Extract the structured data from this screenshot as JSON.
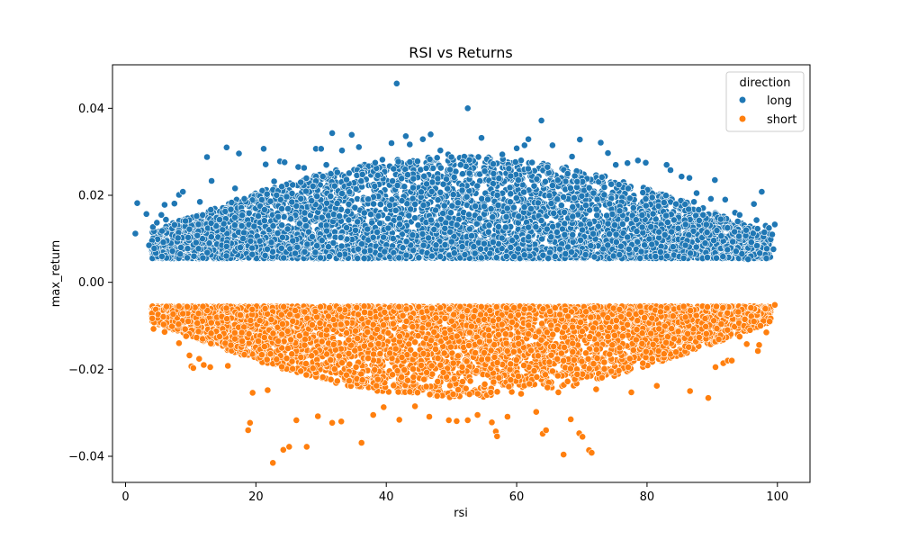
{
  "chart_data": {
    "type": "scatter",
    "title": "RSI vs Returns",
    "xlabel": "rsi",
    "ylabel": "max_return",
    "xlim": [
      -2,
      105
    ],
    "ylim": [
      -0.046,
      0.05
    ],
    "x_ticks": [
      0,
      20,
      40,
      60,
      80,
      100
    ],
    "x_tick_labels": [
      "0",
      "20",
      "40",
      "60",
      "80",
      "100"
    ],
    "y_ticks": [
      -0.04,
      -0.02,
      0.0,
      0.02,
      0.04
    ],
    "y_tick_labels": [
      "−0.04",
      "−0.02",
      "0.00",
      "0.02",
      "0.04"
    ],
    "grid": false,
    "legend": {
      "title": "direction",
      "placement": "top-right",
      "entries": [
        "long",
        "short"
      ]
    },
    "colors": {
      "long": "#1f77b4",
      "short": "#ff7f0e"
    },
    "series": [
      {
        "name": "long",
        "points": [
          [
            1.5,
            0.0112
          ],
          [
            1.8,
            0.0182
          ],
          [
            3.2,
            0.0157
          ],
          [
            3.6,
            0.0085
          ],
          [
            4.2,
            0.0127
          ],
          [
            4.4,
            0.0078
          ],
          [
            4.8,
            0.0137
          ],
          [
            5.5,
            0.0155
          ],
          [
            5.6,
            0.0118
          ],
          [
            5.8,
            0.0092
          ],
          [
            6.0,
            0.0178
          ],
          [
            6.2,
            0.0144
          ],
          [
            7.2,
            0.0072
          ],
          [
            7.5,
            0.0181
          ],
          [
            8.2,
            0.0201
          ],
          [
            8.4,
            0.0065
          ],
          [
            8.8,
            0.0208
          ],
          [
            9.2,
            0.0141
          ],
          [
            9.8,
            0.0122
          ],
          [
            10.5,
            0.006
          ],
          [
            11.4,
            0.0185
          ],
          [
            12.5,
            0.0288
          ],
          [
            13.2,
            0.0233
          ],
          [
            15.5,
            0.031
          ],
          [
            16.8,
            0.0216
          ],
          [
            17.4,
            0.0296
          ],
          [
            21.2,
            0.0307
          ],
          [
            21.5,
            0.0271
          ],
          [
            22.8,
            0.0232
          ],
          [
            23.7,
            0.0278
          ],
          [
            24.4,
            0.0276
          ],
          [
            26.5,
            0.0265
          ],
          [
            27.4,
            0.0263
          ],
          [
            29.2,
            0.0307
          ],
          [
            30.0,
            0.0307
          ],
          [
            30.8,
            0.027
          ],
          [
            31.7,
            0.0343
          ],
          [
            33.2,
            0.0303
          ],
          [
            34.7,
            0.0339
          ],
          [
            35.8,
            0.0311
          ],
          [
            38.3,
            0.0275
          ],
          [
            39.4,
            0.0282
          ],
          [
            40.8,
            0.032
          ],
          [
            41.6,
            0.0457
          ],
          [
            43.0,
            0.0336
          ],
          [
            43.6,
            0.0317
          ],
          [
            45.6,
            0.0329
          ],
          [
            46.8,
            0.034
          ],
          [
            48.3,
            0.0303
          ],
          [
            49.5,
            0.0294
          ],
          [
            50.0,
            0.0288
          ],
          [
            52.5,
            0.04
          ],
          [
            54.6,
            0.0332
          ],
          [
            56.4,
            0.0272
          ],
          [
            57.8,
            0.0294
          ],
          [
            60.0,
            0.0308
          ],
          [
            61.2,
            0.0315
          ],
          [
            61.8,
            0.0329
          ],
          [
            63.8,
            0.0372
          ],
          [
            65.5,
            0.0315
          ],
          [
            68.5,
            0.0289
          ],
          [
            69.7,
            0.0328
          ],
          [
            72.9,
            0.0321
          ],
          [
            74.0,
            0.0297
          ],
          [
            75.2,
            0.027
          ],
          [
            77.0,
            0.0274
          ],
          [
            78.6,
            0.028
          ],
          [
            79.8,
            0.0275
          ],
          [
            83.0,
            0.027
          ],
          [
            83.6,
            0.0258
          ],
          [
            85.3,
            0.0243
          ],
          [
            86.5,
            0.024
          ],
          [
            87.2,
            0.0185
          ],
          [
            87.6,
            0.0205
          ],
          [
            89.8,
            0.0192
          ],
          [
            90.4,
            0.0235
          ],
          [
            92.0,
            0.019
          ],
          [
            93.5,
            0.016
          ],
          [
            94.2,
            0.0155
          ],
          [
            95.2,
            0.012
          ],
          [
            96.0,
            0.0092
          ],
          [
            96.4,
            0.018
          ],
          [
            96.8,
            0.0143
          ],
          [
            97.3,
            0.0067
          ],
          [
            97.6,
            0.0208
          ],
          [
            98.2,
            0.013
          ],
          [
            98.7,
            0.0125
          ],
          [
            99.2,
            0.011
          ],
          [
            99.4,
            0.0076
          ],
          [
            99.6,
            0.0133
          ],
          [
            98.0,
            0.0115
          ],
          [
            95.5,
            0.0053
          ],
          [
            91.3,
            0.0145
          ],
          [
            88.6,
            0.0155
          ],
          [
            85.9,
            0.0133
          ]
        ]
      },
      {
        "name": "short",
        "points": [
          [
            4.1,
            -0.0083
          ],
          [
            4.3,
            -0.0107
          ],
          [
            5.0,
            -0.0074
          ],
          [
            5.8,
            -0.0079
          ],
          [
            6.0,
            -0.0114
          ],
          [
            7.3,
            -0.0073
          ],
          [
            8.2,
            -0.014
          ],
          [
            8.8,
            -0.0072
          ],
          [
            9.3,
            -0.0124
          ],
          [
            9.8,
            -0.0168
          ],
          [
            10.1,
            -0.0193
          ],
          [
            10.4,
            -0.0197
          ],
          [
            11.3,
            -0.0176
          ],
          [
            12.0,
            -0.019
          ],
          [
            13.0,
            -0.0195
          ],
          [
            15.7,
            -0.0192
          ],
          [
            18.8,
            -0.034
          ],
          [
            19.1,
            -0.0323
          ],
          [
            19.5,
            -0.0254
          ],
          [
            21.8,
            -0.0248
          ],
          [
            22.6,
            -0.0415
          ],
          [
            24.2,
            -0.0385
          ],
          [
            25.1,
            -0.0378
          ],
          [
            26.2,
            -0.0317
          ],
          [
            27.8,
            -0.0378
          ],
          [
            29.5,
            -0.0308
          ],
          [
            31.7,
            -0.0323
          ],
          [
            33.1,
            -0.032
          ],
          [
            36.2,
            -0.0369
          ],
          [
            38.0,
            -0.0305
          ],
          [
            39.6,
            -0.0287
          ],
          [
            42.0,
            -0.0316
          ],
          [
            44.4,
            -0.0285
          ],
          [
            46.6,
            -0.0309
          ],
          [
            49.6,
            -0.0317
          ],
          [
            50.8,
            -0.0319
          ],
          [
            52.5,
            -0.0317
          ],
          [
            54.0,
            -0.0305
          ],
          [
            56.2,
            -0.0322
          ],
          [
            56.8,
            -0.0343
          ],
          [
            57.0,
            -0.0354
          ],
          [
            58.6,
            -0.0309
          ],
          [
            63.0,
            -0.0298
          ],
          [
            64.0,
            -0.0348
          ],
          [
            64.5,
            -0.034
          ],
          [
            66.4,
            -0.0253
          ],
          [
            67.2,
            -0.0396
          ],
          [
            68.3,
            -0.0315
          ],
          [
            69.6,
            -0.0347
          ],
          [
            70.1,
            -0.0355
          ],
          [
            71.1,
            -0.0386
          ],
          [
            71.5,
            -0.0392
          ],
          [
            72.2,
            -0.0246
          ],
          [
            77.6,
            -0.0253
          ],
          [
            81.5,
            -0.0238
          ],
          [
            86.6,
            -0.025
          ],
          [
            89.4,
            -0.0266
          ],
          [
            90.5,
            -0.0195
          ],
          [
            91.0,
            -0.0131
          ],
          [
            91.7,
            -0.0186
          ],
          [
            92.4,
            -0.018
          ],
          [
            93.0,
            -0.018
          ],
          [
            94.2,
            -0.0125
          ],
          [
            95.0,
            -0.0085
          ],
          [
            95.3,
            -0.0142
          ],
          [
            95.8,
            -0.011
          ],
          [
            96.0,
            -0.0078
          ],
          [
            96.4,
            -0.009
          ],
          [
            97.0,
            -0.0158
          ],
          [
            97.2,
            -0.0144
          ],
          [
            97.4,
            -0.01
          ],
          [
            98.3,
            -0.0115
          ],
          [
            98.8,
            -0.009
          ],
          [
            99.6,
            -0.0052
          ],
          [
            94.0,
            -0.0068
          ]
        ]
      }
    ]
  }
}
